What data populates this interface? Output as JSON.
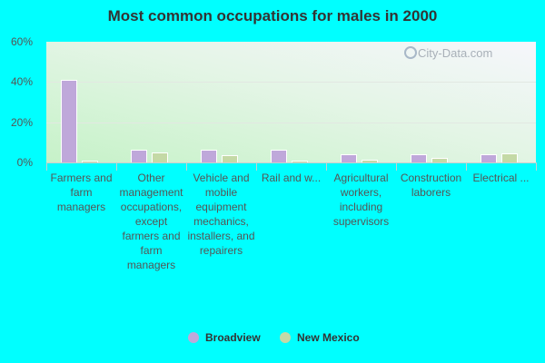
{
  "title": "Most common occupations for males in 2000",
  "watermark": "City-Data.com",
  "colors": {
    "broadview": "#bfa8da",
    "new_mexico": "#c4d9a6",
    "background": "#00ffff"
  },
  "y_ticks": [
    "60%",
    "40%",
    "20%",
    "0%"
  ],
  "legend": {
    "broadview": "Broadview",
    "new_mexico": "New Mexico"
  },
  "categories": [
    "Farmers and farm managers",
    "Other management occupations, except farmers and farm managers",
    "Vehicle and mobile equipment mechanics, installers, and repairers",
    "Rail and w...",
    "Agricultural workers, including supervisors",
    "Construction laborers",
    "Electrical ..."
  ],
  "chart_data": {
    "type": "bar",
    "title": "Most common occupations for males in 2000",
    "xlabel": "",
    "ylabel": "",
    "ylim": [
      0,
      60
    ],
    "y_ticks": [
      0,
      20,
      40,
      60
    ],
    "grid": true,
    "legend_position": "bottom",
    "categories": [
      "Farmers and farm managers",
      "Other management occupations, except farmers and farm managers",
      "Vehicle and mobile equipment mechanics, installers, and repairers",
      "Rail and w...",
      "Agricultural workers, including supervisors",
      "Construction laborers",
      "Electrical ..."
    ],
    "series": [
      {
        "name": "Broadview",
        "color": "#bfa8da",
        "values": [
          41.0,
          6.3,
          6.3,
          6.3,
          4.1,
          4.1,
          4.1
        ]
      },
      {
        "name": "New Mexico",
        "color": "#c4d9a6",
        "values": [
          0.9,
          5.0,
          3.6,
          0.4,
          1.5,
          2.3,
          4.6
        ]
      }
    ]
  }
}
